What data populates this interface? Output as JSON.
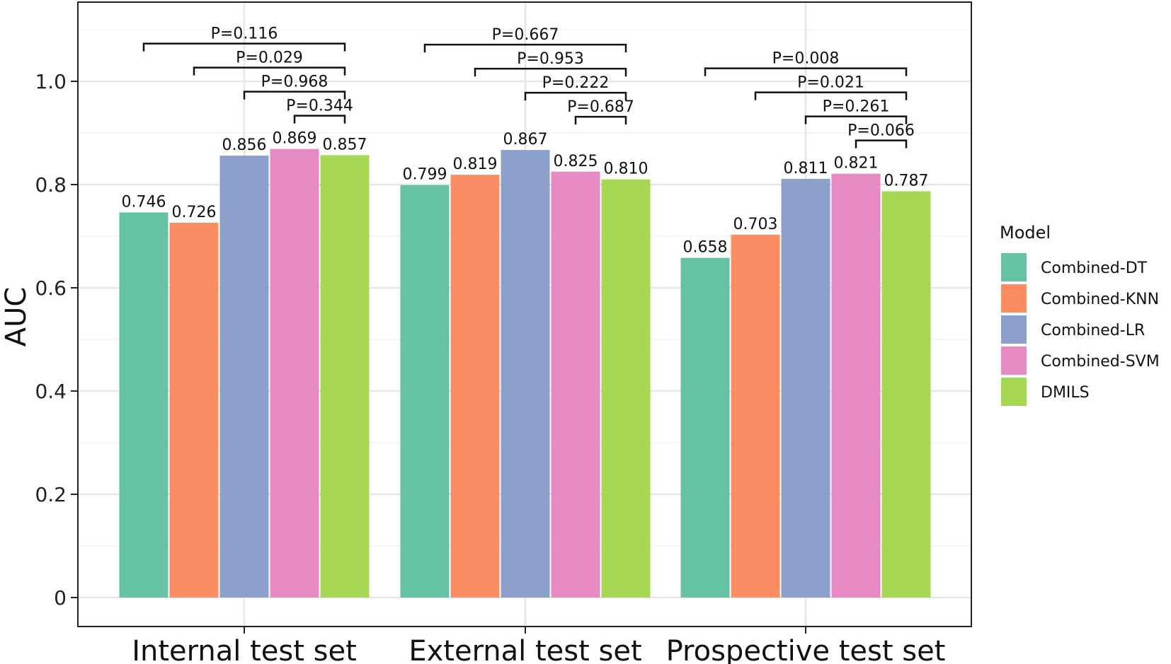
{
  "chart_data": {
    "type": "bar",
    "title": "",
    "xlabel": "",
    "ylabel": "AUC",
    "ylim": [
      0,
      1.12
    ],
    "yticks": [
      0,
      0.2,
      0.4,
      0.6,
      0.8,
      1.0
    ],
    "ytick_labels": [
      "0",
      "0.2",
      "0.4",
      "0.6",
      "0.8",
      "1.0"
    ],
    "grid": true,
    "legend_position": "right",
    "legend_title": "Model",
    "categories": [
      "Internal test set",
      "External test set",
      "Prospective test set"
    ],
    "series": [
      {
        "name": "Combined-DT",
        "color": "#66c2a5",
        "values": [
          0.746,
          0.799,
          0.658
        ],
        "labels": [
          "0.746",
          "0.799",
          "0.658"
        ]
      },
      {
        "name": "Combined-KNN",
        "color": "#fc8d62",
        "values": [
          0.726,
          0.819,
          0.703
        ],
        "labels": [
          "0.726",
          "0.819",
          "0.703"
        ]
      },
      {
        "name": "Combined-LR",
        "color": "#8da0cb",
        "values": [
          0.856,
          0.867,
          0.811
        ],
        "labels": [
          "0.856",
          "0.867",
          "0.811"
        ]
      },
      {
        "name": "Combined-SVM",
        "color": "#e78ac3",
        "values": [
          0.869,
          0.825,
          0.821
        ],
        "labels": [
          "0.869",
          "0.825",
          "0.821"
        ]
      },
      {
        "name": "DMILS",
        "color": "#a6d854",
        "values": [
          0.857,
          0.81,
          0.787
        ],
        "labels": [
          "0.857",
          "0.810",
          "0.787"
        ]
      }
    ],
    "comparisons": [
      [
        {
          "from": 0,
          "to": 4,
          "label": "P=0.116"
        },
        {
          "from": 1,
          "to": 4,
          "label": "P=0.029"
        },
        {
          "from": 2,
          "to": 4,
          "label": "P=0.968"
        },
        {
          "from": 3,
          "to": 4,
          "label": "P=0.344"
        }
      ],
      [
        {
          "from": 0,
          "to": 4,
          "label": "P=0.667"
        },
        {
          "from": 1,
          "to": 4,
          "label": "P=0.953"
        },
        {
          "from": 2,
          "to": 4,
          "label": "P=0.222"
        },
        {
          "from": 3,
          "to": 4,
          "label": "P=0.687"
        }
      ],
      [
        {
          "from": 0,
          "to": 4,
          "label": "P=0.008"
        },
        {
          "from": 1,
          "to": 4,
          "label": "P=0.021"
        },
        {
          "from": 2,
          "to": 4,
          "label": "P=0.261"
        },
        {
          "from": 3,
          "to": 4,
          "label": "P=0.066"
        }
      ]
    ]
  }
}
